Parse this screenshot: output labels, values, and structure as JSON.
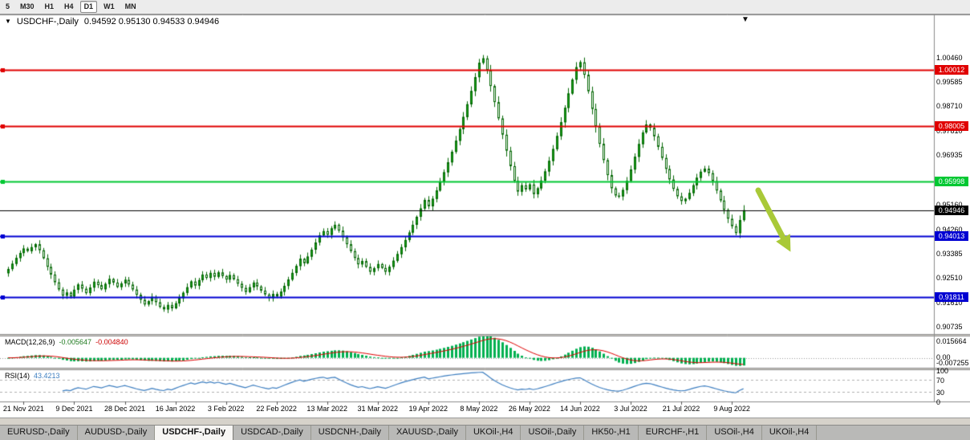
{
  "toolbar": {
    "timeframes": [
      {
        "label": "5"
      },
      {
        "label": "M30"
      },
      {
        "label": "H1"
      },
      {
        "label": "H4"
      },
      {
        "label": "D1"
      },
      {
        "label": "W1"
      },
      {
        "label": "MN"
      }
    ],
    "active_index": 4
  },
  "chart": {
    "symbol_label": "USDCHF-,Daily",
    "ohlc_text": "0.94592 0.95130 0.94533 0.94946",
    "dropdown_icon": "▼",
    "shift_marker_icon": "▼"
  },
  "price_axis": {
    "labels": [
      "1.00460",
      "0.99585",
      "0.98710",
      "0.97810",
      "0.96935",
      "0.96060",
      "0.95160",
      "0.94260",
      "0.93385",
      "0.92510",
      "0.91610",
      "0.90735"
    ]
  },
  "date_axis": {
    "labels": [
      "21 Nov 2021",
      "9 Dec 2021",
      "28 Dec 2021",
      "16 Jan 2022",
      "3 Feb 2022",
      "22 Feb 2022",
      "13 Mar 2022",
      "31 Mar 2022",
      "19 Apr 2022",
      "8 May 2022",
      "26 May 2022",
      "14 Jun 2022",
      "3 Jul 2022",
      "21 Jul 2022",
      "9 Aug 2022"
    ]
  },
  "levels": [
    {
      "label": "1.00012",
      "price": 1.00012,
      "color": "#E00000",
      "line_width": 2,
      "edge_marker": true
    },
    {
      "label": "0.98005",
      "price": 0.98005,
      "color": "#E00000",
      "line_width": 2,
      "edge_marker": true
    },
    {
      "label": "0.95998",
      "price": 0.95998,
      "color": "#00C832",
      "line_width": 2,
      "edge_marker": true
    },
    {
      "label": "0.94946",
      "price": 0.94946,
      "color": "#000000",
      "line_width": 1,
      "edge_marker": false
    },
    {
      "label": "0.94013",
      "price": 0.94013,
      "color": "#0000D2",
      "line_width": 2,
      "edge_marker": true
    },
    {
      "label": "0.91811",
      "price": 0.91811,
      "color": "#0000D2",
      "line_width": 2,
      "edge_marker": true
    }
  ],
  "indicators": {
    "macd": {
      "title": "MACD(12,26,9)",
      "value_main": "-0.005647",
      "value_signal": "-0.004840",
      "scale_top": "0.015664",
      "scale_zero": "0.00",
      "scale_bottom": "-0.007255",
      "range": [
        -0.007255,
        0.015664
      ],
      "hist_color": "#00B050",
      "signal_color": "#E00000",
      "fast": 12,
      "slow": 26,
      "smoothing": 9
    },
    "rsi": {
      "title": "RSI(14)",
      "value": "43.4213",
      "period": 14,
      "scale": [
        "100",
        "70",
        "30",
        "0"
      ],
      "guide_levels": [
        70,
        30
      ],
      "line_color": "#3E7FC1"
    }
  },
  "tabs": {
    "items": [
      {
        "label": "EURUSD-,Daily"
      },
      {
        "label": "AUDUSD-,Daily"
      },
      {
        "label": "USDCHF-,Daily"
      },
      {
        "label": "USDCAD-,Daily"
      },
      {
        "label": "USDCNH-,Daily"
      },
      {
        "label": "XAUUSD-,Daily"
      },
      {
        "label": "UKOil-,H4"
      },
      {
        "label": "USOil-,Daily"
      },
      {
        "label": "HK50-,H1"
      },
      {
        "label": "EURCHF-,H1"
      },
      {
        "label": "USOil-,H4"
      },
      {
        "label": "UKOil-,H4"
      }
    ],
    "active_index": 2
  },
  "annotation": {
    "name": "down-trend-arrow",
    "color": "#A9C938"
  },
  "chart_data": {
    "type": "candlestick",
    "symbol": "USDCHF",
    "timeframe": "Daily",
    "ylim": [
      0.9047,
      1.02
    ],
    "x_labels": [
      "21 Nov 2021",
      "9 Dec 2021",
      "28 Dec 2021",
      "16 Jan 2022",
      "3 Feb 2022",
      "22 Feb 2022",
      "13 Mar 2022",
      "31 Mar 2022",
      "19 Apr 2022",
      "8 May 2022",
      "26 May 2022",
      "14 Jun 2022",
      "3 Jul 2022",
      "21 Jul 2022",
      "9 Aug 2022"
    ],
    "label_every": 13,
    "first_label_bar": 4,
    "last_candle": {
      "open": 0.94592,
      "high": 0.9513,
      "low": 0.94533,
      "close": 0.94946
    },
    "candle_colors": {
      "bull": "#17A317",
      "bear": "#FFFFFF",
      "outline": "#056805"
    },
    "closes": [
      0.9282,
      0.9301,
      0.9322,
      0.934,
      0.9356,
      0.9347,
      0.9361,
      0.9372,
      0.935,
      0.9321,
      0.929,
      0.9262,
      0.9234,
      0.9208,
      0.9186,
      0.9197,
      0.9183,
      0.9207,
      0.9226,
      0.9211,
      0.9195,
      0.9215,
      0.9236,
      0.9224,
      0.9209,
      0.9228,
      0.9246,
      0.9233,
      0.9217,
      0.923,
      0.9243,
      0.9226,
      0.9208,
      0.9189,
      0.9171,
      0.9154,
      0.9166,
      0.9181,
      0.9162,
      0.9145,
      0.9136,
      0.9152,
      0.914,
      0.9158,
      0.9177,
      0.9196,
      0.9216,
      0.9237,
      0.9222,
      0.9242,
      0.9262,
      0.925,
      0.9268,
      0.9254,
      0.927,
      0.9257,
      0.9244,
      0.926,
      0.9245,
      0.9229,
      0.9214,
      0.9199,
      0.9216,
      0.9233,
      0.9219,
      0.9204,
      0.919,
      0.9177,
      0.9192,
      0.9183,
      0.92,
      0.9221,
      0.9244,
      0.9268,
      0.9293,
      0.9319,
      0.9303,
      0.9327,
      0.9352,
      0.9378,
      0.9404,
      0.9419,
      0.9406,
      0.9429,
      0.9442,
      0.9421,
      0.9397,
      0.9372,
      0.9347,
      0.9322,
      0.9299,
      0.9311,
      0.929,
      0.9272,
      0.9285,
      0.93,
      0.9286,
      0.9272,
      0.929,
      0.9312,
      0.9336,
      0.9361,
      0.9387,
      0.9414,
      0.9442,
      0.9471,
      0.9501,
      0.9532,
      0.9509,
      0.9536,
      0.9566,
      0.9598,
      0.9632,
      0.9668,
      0.9706,
      0.9746,
      0.9788,
      0.9832,
      0.9878,
      0.9926,
      0.9976,
      1.0028,
      1.0044,
      1.0,
      0.9944,
      0.9886,
      0.9827,
      0.9768,
      0.971,
      0.9654,
      0.9601,
      0.9562,
      0.9585,
      0.957,
      0.9588,
      0.9553,
      0.9574,
      0.9602,
      0.9635,
      0.9673,
      0.9716,
      0.9763,
      0.9813,
      0.9865,
      0.9917,
      0.9967,
      1.0012,
      1.003,
      0.9985,
      0.9925,
      0.9861,
      0.9797,
      0.9735,
      0.9676,
      0.9622,
      0.9574,
      0.9548,
      0.9545,
      0.9568,
      0.9601,
      0.9642,
      0.9688,
      0.9734,
      0.9776,
      0.9805,
      0.9793,
      0.9762,
      0.9724,
      0.9684,
      0.9644,
      0.9606,
      0.9572,
      0.9545,
      0.9528,
      0.9536,
      0.9557,
      0.9585,
      0.9612,
      0.9634,
      0.9645,
      0.9629,
      0.96,
      0.9566,
      0.953,
      0.9496,
      0.9464,
      0.9437,
      0.9412,
      0.9459,
      0.9495
    ]
  }
}
